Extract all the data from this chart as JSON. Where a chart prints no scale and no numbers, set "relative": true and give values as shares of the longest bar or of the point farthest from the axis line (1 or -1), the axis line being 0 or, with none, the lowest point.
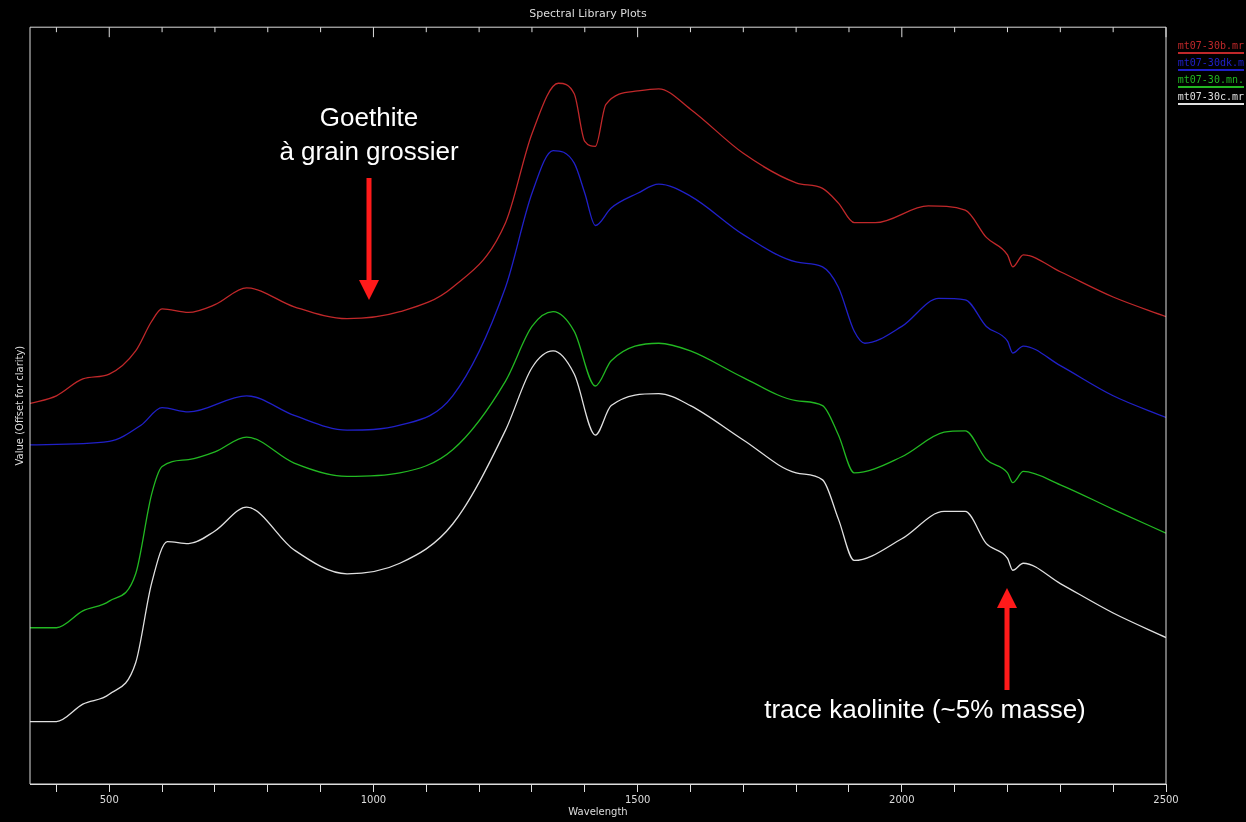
{
  "chart_data": {
    "type": "line",
    "title": "Spectral Library Plots",
    "xlabel": "Wavelength",
    "ylabel": "Value (Offset for clarity)",
    "relative": true,
    "legend": "top right",
    "marker": "none",
    "line_style": "solid",
    "grid": false,
    "xlim": [
      350,
      2500
    ],
    "xticks": [
      {
        "value": 400,
        "label": null
      },
      500,
      {
        "value": 600,
        "label": null
      },
      {
        "value": 700,
        "label": null
      },
      {
        "value": 800,
        "label": null
      },
      {
        "value": 900,
        "label": null
      },
      1000,
      {
        "value": 1100,
        "label": null
      },
      {
        "value": 1200,
        "label": null
      },
      {
        "value": 1300,
        "label": null
      },
      {
        "value": 1400,
        "label": null
      },
      1500,
      {
        "value": 1600,
        "label": null
      },
      {
        "value": 1700,
        "label": null
      },
      {
        "value": 1800,
        "label": null
      },
      {
        "value": 1900,
        "label": null
      },
      2000,
      {
        "value": 2100,
        "label": null
      },
      {
        "value": 2200,
        "label": null
      },
      {
        "value": 2300,
        "label": null
      },
      {
        "value": 2400,
        "label": null
      },
      2500
    ],
    "annotations": [
      "Goethite\nà grain grossier",
      "trace kaolinite (~5% masse)"
    ],
    "series": [
      {
        "name": "mt07-30b.mr",
        "color": "#c0282a",
        "x": [
          350,
          400,
          450,
          500,
          550,
          580,
          600,
          650,
          700,
          760,
          850,
          950,
          1050,
          1150,
          1250,
          1300,
          1350,
          1380,
          1400,
          1420,
          1440,
          1500,
          1540,
          1600,
          1700,
          1800,
          1850,
          1880,
          1910,
          1950,
          2050,
          2120,
          2160,
          2200,
          2210,
          2230,
          2300,
          2400,
          2500
        ],
        "values": [
          0.543,
          0.554,
          0.578,
          0.585,
          0.618,
          0.66,
          0.678,
          0.673,
          0.684,
          0.708,
          0.681,
          0.664,
          0.674,
          0.709,
          0.801,
          0.928,
          1.0,
          0.985,
          0.917,
          0.91,
          0.97,
          0.989,
          0.992,
          0.963,
          0.9,
          0.858,
          0.85,
          0.829,
          0.801,
          0.801,
          0.825,
          0.819,
          0.78,
          0.755,
          0.738,
          0.755,
          0.731,
          0.695,
          0.667
        ]
      },
      {
        "name": "mt07-30dk.m",
        "color": "#2020c8",
        "x": [
          350,
          500,
          560,
          600,
          650,
          760,
          850,
          950,
          1050,
          1150,
          1250,
          1300,
          1340,
          1380,
          1400,
          1420,
          1450,
          1500,
          1540,
          1600,
          1700,
          1800,
          1850,
          1880,
          1910,
          1930,
          2000,
          2070,
          2120,
          2160,
          2200,
          2210,
          2230,
          2300,
          2400,
          2500
        ],
        "values": [
          0.484,
          0.489,
          0.512,
          0.537,
          0.531,
          0.554,
          0.526,
          0.505,
          0.512,
          0.554,
          0.709,
          0.843,
          0.904,
          0.886,
          0.843,
          0.797,
          0.822,
          0.843,
          0.856,
          0.839,
          0.784,
          0.745,
          0.738,
          0.709,
          0.646,
          0.629,
          0.653,
          0.693,
          0.691,
          0.653,
          0.632,
          0.615,
          0.625,
          0.597,
          0.554,
          0.523
        ]
      },
      {
        "name": "mt07-30.mn.",
        "color": "#22b822",
        "x": [
          350,
          400,
          450,
          500,
          550,
          580,
          600,
          650,
          700,
          760,
          850,
          950,
          1050,
          1150,
          1250,
          1300,
          1340,
          1380,
          1420,
          1450,
          1540,
          1600,
          1700,
          1800,
          1850,
          1880,
          1910,
          2000,
          2080,
          2120,
          2160,
          2200,
          2210,
          2230,
          2300,
          2400,
          2500
        ],
        "values": [
          0.223,
          0.223,
          0.247,
          0.261,
          0.3,
          0.413,
          0.453,
          0.463,
          0.474,
          0.495,
          0.458,
          0.439,
          0.444,
          0.477,
          0.575,
          0.653,
          0.674,
          0.646,
          0.568,
          0.604,
          0.629,
          0.618,
          0.58,
          0.547,
          0.54,
          0.498,
          0.444,
          0.467,
          0.502,
          0.504,
          0.463,
          0.444,
          0.43,
          0.446,
          0.427,
          0.392,
          0.358
        ]
      },
      {
        "name": "mt07-30c.mr",
        "color": "#e0e0e0",
        "x": [
          350,
          400,
          450,
          500,
          550,
          580,
          610,
          650,
          700,
          760,
          850,
          950,
          1050,
          1150,
          1250,
          1300,
          1340,
          1380,
          1420,
          1450,
          1540,
          1600,
          1700,
          1800,
          1850,
          1880,
          1910,
          2000,
          2080,
          2120,
          2160,
          2200,
          2210,
          2230,
          2300,
          2400,
          2500
        ],
        "values": [
          0.089,
          0.089,
          0.114,
          0.128,
          0.173,
          0.286,
          0.346,
          0.343,
          0.361,
          0.395,
          0.334,
          0.3,
          0.315,
          0.371,
          0.505,
          0.594,
          0.618,
          0.585,
          0.498,
          0.54,
          0.557,
          0.54,
          0.491,
          0.444,
          0.434,
          0.378,
          0.319,
          0.35,
          0.389,
          0.389,
          0.343,
          0.322,
          0.305,
          0.315,
          0.286,
          0.244,
          0.209
        ]
      }
    ]
  }
}
